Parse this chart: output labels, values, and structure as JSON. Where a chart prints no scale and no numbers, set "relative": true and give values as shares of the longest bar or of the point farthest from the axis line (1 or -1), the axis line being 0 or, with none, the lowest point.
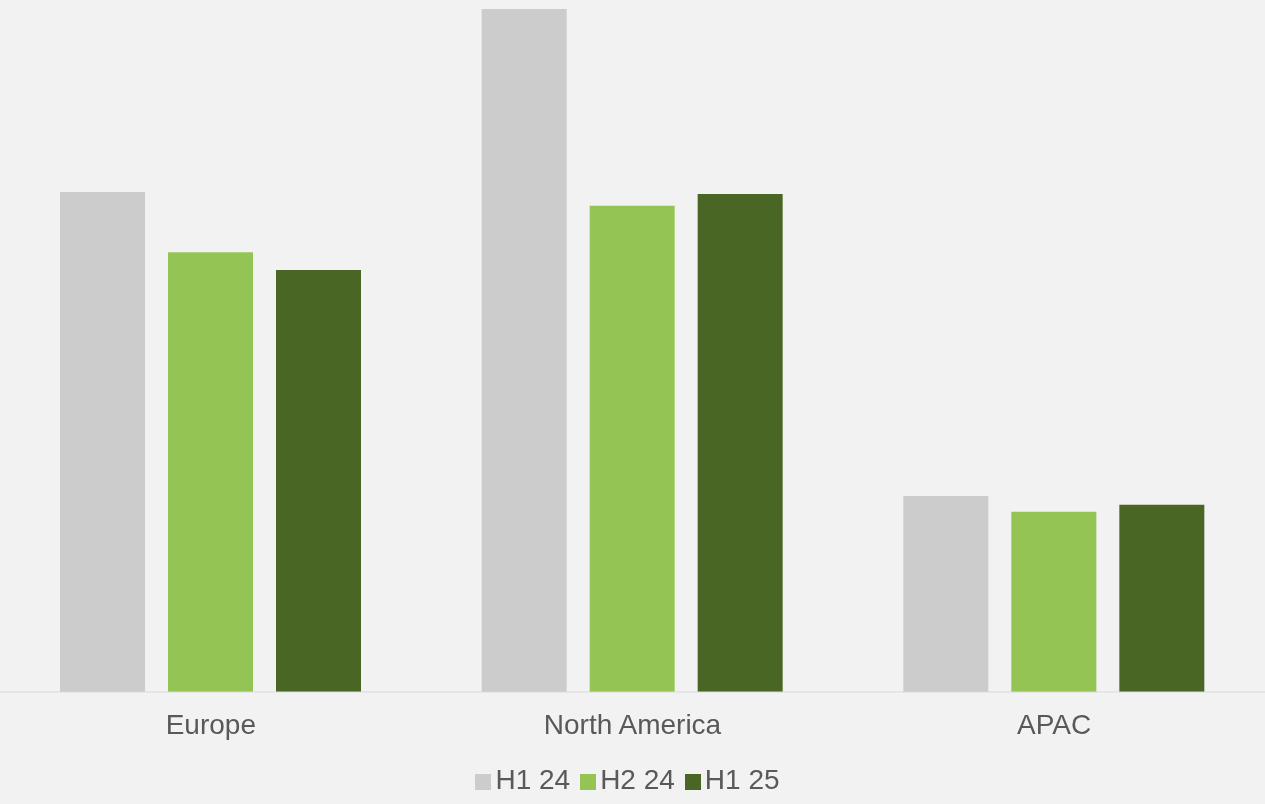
{
  "chart_data": {
    "type": "bar",
    "relative": true,
    "categories": [
      "Europe",
      "North America",
      "APAC"
    ],
    "series": [
      {
        "name": "H1 24",
        "color": "#cccccc",
        "values": [
          0.732,
          1,
          0.287
        ]
      },
      {
        "name": "H2 24",
        "color": "#94c454",
        "values": [
          0.644,
          0.712,
          0.264
        ]
      },
      {
        "name": "H1 25",
        "color": "#4a6624",
        "values": [
          0.618,
          0.729,
          0.274
        ]
      }
    ],
    "legend": "bottom"
  }
}
